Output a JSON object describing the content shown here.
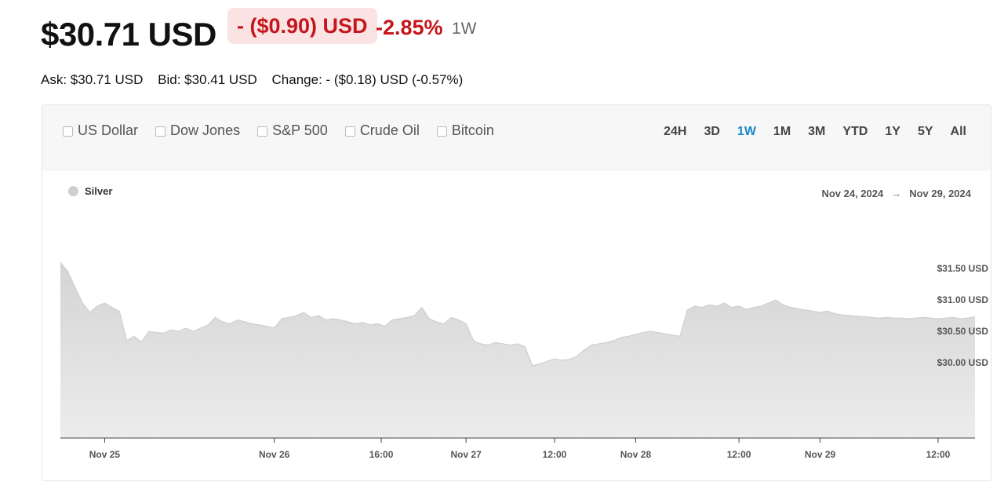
{
  "header": {
    "price": "$30.71 USD",
    "change_amount": "- ($0.90) USD",
    "change_pct": "-2.85%",
    "range": "1W"
  },
  "quote": {
    "ask": "Ask: $30.71 USD",
    "bid": "Bid: $30.41 USD",
    "change": "Change: - ($0.18) USD (-0.57%)"
  },
  "compare": [
    "US Dollar",
    "Dow Jones",
    "S&P 500",
    "Crude Oil",
    "Bitcoin"
  ],
  "ranges": [
    "24H",
    "3D",
    "1W",
    "1M",
    "3M",
    "YTD",
    "1Y",
    "5Y",
    "All"
  ],
  "active_range": "1W",
  "legend": {
    "series": "Silver"
  },
  "date_range": {
    "from": "Nov 24, 2024",
    "arrow": "→",
    "to": "Nov 29, 2024"
  },
  "colors": {
    "area": "#e4e4e4",
    "line": "#cfcfcf",
    "down": "#c4161c",
    "active": "#1a86c8"
  },
  "chart_data": {
    "type": "area",
    "title": "",
    "xlabel": "",
    "ylabel": "",
    "ylim": [
      28.8,
      31.85
    ],
    "xlim": [
      0,
      124
    ],
    "y_ticks": [
      {
        "value": 31.5,
        "label": "$31.50 USD"
      },
      {
        "value": 31.0,
        "label": "$31.00 USD"
      },
      {
        "value": 30.5,
        "label": "$30.50 USD"
      },
      {
        "value": 30.0,
        "label": "$30.00 USD"
      }
    ],
    "x_ticks": [
      {
        "x": 6,
        "label": "Nov 25"
      },
      {
        "x": 29,
        "label": "Nov 26"
      },
      {
        "x": 43.5,
        "label": "16:00"
      },
      {
        "x": 55,
        "label": "Nov 27"
      },
      {
        "x": 67,
        "label": "12:00"
      },
      {
        "x": 78,
        "label": "Nov 28"
      },
      {
        "x": 92,
        "label": "12:00"
      },
      {
        "x": 103,
        "label": "Nov 29"
      },
      {
        "x": 119,
        "label": "12:00"
      }
    ],
    "series": [
      {
        "name": "Silver",
        "x": [
          0,
          1,
          2,
          3,
          4,
          5,
          6,
          7,
          8,
          9,
          10,
          11,
          12,
          13,
          14,
          15,
          16,
          17,
          18,
          19,
          20,
          21,
          22,
          23,
          24,
          25,
          26,
          27,
          28,
          29,
          30,
          31,
          32,
          33,
          34,
          35,
          36,
          37,
          38,
          39,
          40,
          41,
          42,
          43,
          44,
          45,
          46,
          47,
          48,
          49,
          50,
          51,
          52,
          53,
          54,
          55,
          56,
          57,
          58,
          59,
          60,
          61,
          62,
          63,
          64,
          65,
          66,
          67,
          68,
          69,
          70,
          71,
          72,
          73,
          74,
          75,
          76,
          77,
          78,
          79,
          80,
          81,
          82,
          83,
          84,
          85,
          86,
          87,
          88,
          89,
          90,
          91,
          92,
          93,
          94,
          95,
          96,
          97,
          98,
          99,
          100,
          101,
          102,
          103,
          104,
          105,
          106,
          107,
          108,
          109,
          110,
          111,
          112,
          113,
          114,
          115,
          116,
          117,
          118,
          119,
          120,
          121,
          122,
          123,
          124
        ],
        "values": [
          31.6,
          31.45,
          31.2,
          30.95,
          30.8,
          30.9,
          30.95,
          30.88,
          30.82,
          30.35,
          30.42,
          30.33,
          30.5,
          30.48,
          30.47,
          30.52,
          30.5,
          30.55,
          30.5,
          30.55,
          30.6,
          30.72,
          30.65,
          30.62,
          30.68,
          30.65,
          30.62,
          30.6,
          30.58,
          30.55,
          30.7,
          30.72,
          30.75,
          30.8,
          30.72,
          30.75,
          30.68,
          30.7,
          30.68,
          30.65,
          30.62,
          30.64,
          30.6,
          30.62,
          30.58,
          30.68,
          30.7,
          30.72,
          30.75,
          30.88,
          30.7,
          30.65,
          30.62,
          30.72,
          30.68,
          30.62,
          30.35,
          30.3,
          30.28,
          30.32,
          30.3,
          30.28,
          30.3,
          30.25,
          29.95,
          29.98,
          30.02,
          30.06,
          30.04,
          30.05,
          30.1,
          30.2,
          30.28,
          30.3,
          30.32,
          30.35,
          30.4,
          30.42,
          30.45,
          30.48,
          30.5,
          30.48,
          30.46,
          30.44,
          30.42,
          30.84,
          30.9,
          30.88,
          30.92,
          30.9,
          30.95,
          30.88,
          30.9,
          30.85,
          30.88,
          30.9,
          30.95,
          31.0,
          30.92,
          30.88,
          30.86,
          30.84,
          30.82,
          30.8,
          30.82,
          30.78,
          30.76,
          30.75,
          30.74,
          30.73,
          30.72,
          30.71,
          30.72,
          30.71,
          30.71,
          30.7,
          30.71,
          30.72,
          30.71,
          30.7,
          30.71,
          30.72,
          30.7,
          30.71,
          30.73
        ]
      }
    ]
  }
}
